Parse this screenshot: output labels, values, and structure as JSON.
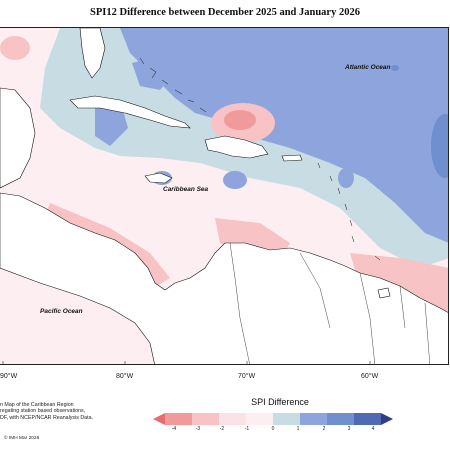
{
  "title": "SPI12 Difference between December 2025 and January 2026",
  "ocean_labels": {
    "atlantic": "Atlantic Ocean",
    "caribbean": "Caribbean Sea",
    "pacific": "Pacific Ocean"
  },
  "longitude_labels": [
    "90°W",
    "80°W",
    "70°W",
    "60°W"
  ],
  "source_text": {
    "line1": "n Map of the Caribbean Region",
    "line2": "regating station based observations,",
    "line3": "DF, with NCEP/NCAR Reanalysis Data."
  },
  "copyright": "© IMH Mar 2026",
  "legend": {
    "title": "SPI Difference",
    "ticks": [
      "-4",
      "-3",
      "-2",
      "-1",
      "0",
      "1",
      "2",
      "3",
      "4"
    ],
    "colors": {
      "-4": "#e86b6e",
      "-3": "#f19a9c",
      "-2": "#f7c3c5",
      "-1": "#fbe3e5",
      "0": "#c7dde3",
      "1": "#8ea4dc",
      "2": "#6f8fcf",
      "3": "#4f6ab2",
      "4": "#2e3d86"
    }
  },
  "map_colors": {
    "land": "#ffffff",
    "coast": "#111111",
    "neutral": "#fdeef1"
  }
}
